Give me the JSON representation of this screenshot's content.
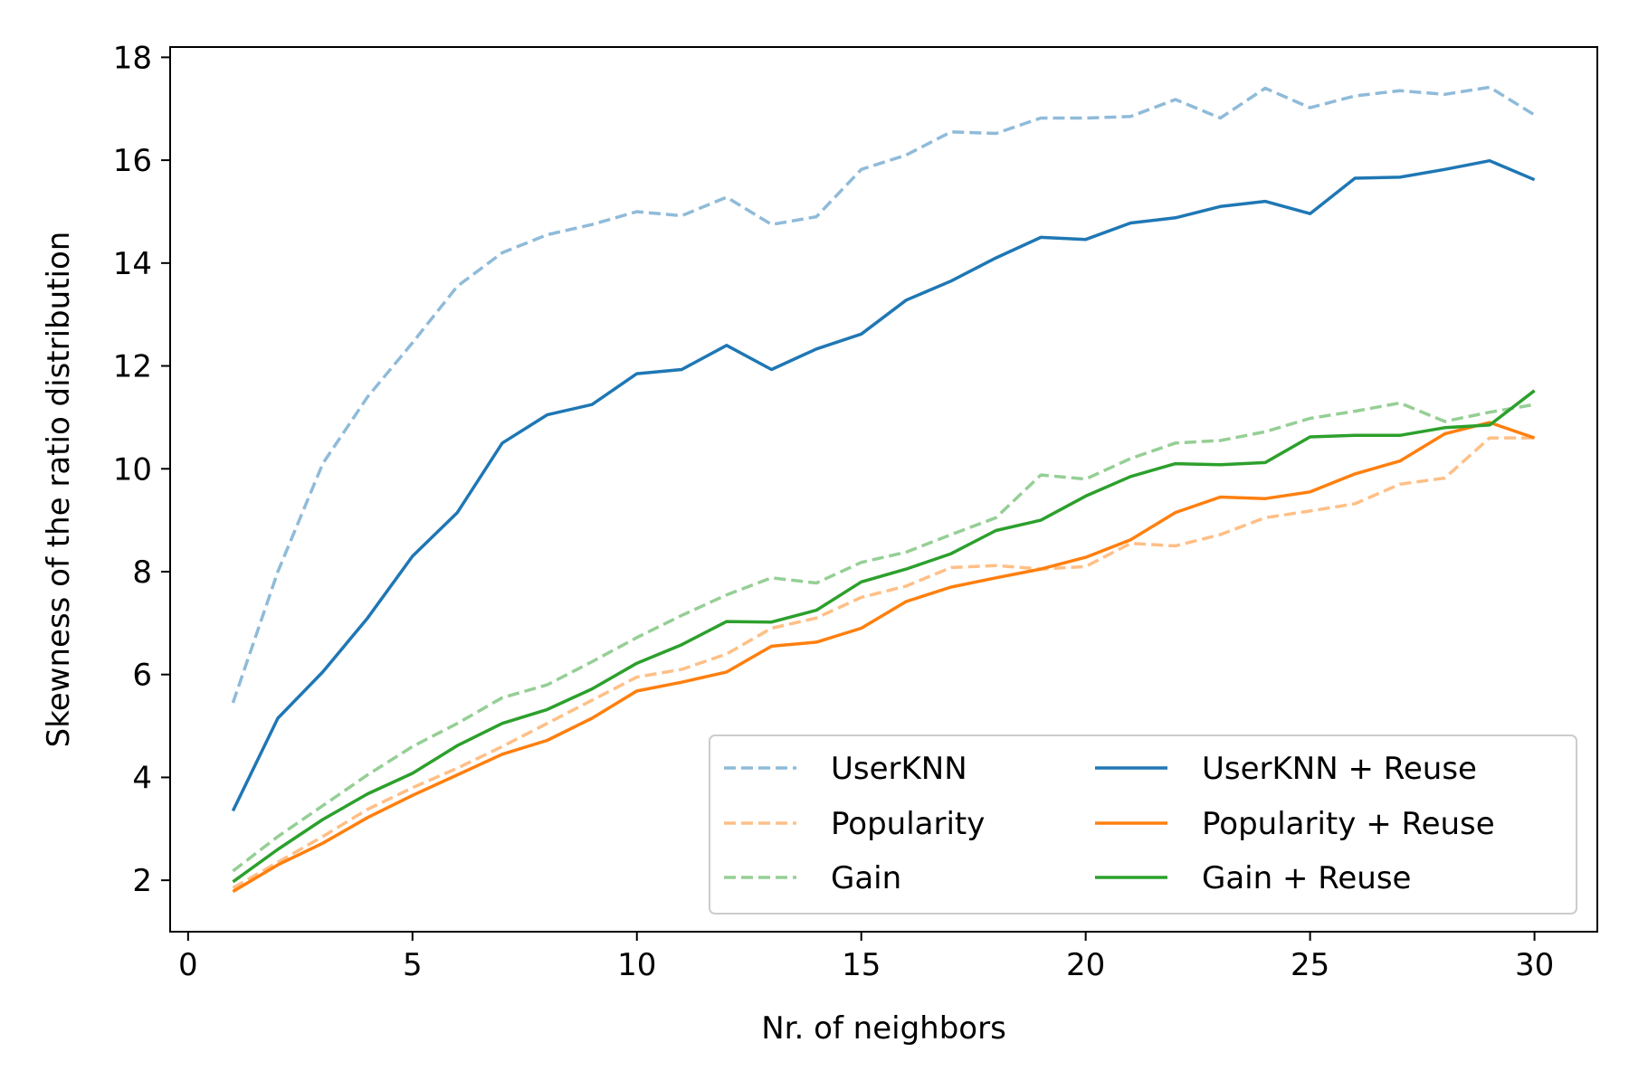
{
  "chart_data": {
    "type": "line",
    "xlabel": "Nr. of neighbors",
    "ylabel": "Skewness of the ratio distribution",
    "xlim": [
      -0.4,
      31.4
    ],
    "ylim": [
      1,
      18.2
    ],
    "xticks": [
      0,
      5,
      10,
      15,
      20,
      25,
      30
    ],
    "yticks": [
      2,
      4,
      6,
      8,
      10,
      12,
      14,
      16,
      18
    ],
    "grid": false,
    "legend_position": "lower-right",
    "legend_columns": 2,
    "x": [
      1,
      2,
      3,
      4,
      5,
      6,
      7,
      8,
      9,
      10,
      11,
      12,
      13,
      14,
      15,
      16,
      17,
      18,
      19,
      20,
      21,
      22,
      23,
      24,
      25,
      26,
      27,
      28,
      29,
      30
    ],
    "series": [
      {
        "name": "UserKNN",
        "color": "#1f77b4",
        "dashed": true,
        "faded": true,
        "values": [
          5.45,
          8.0,
          10.1,
          11.4,
          12.45,
          13.55,
          14.2,
          14.55,
          14.75,
          15.0,
          14.92,
          15.28,
          14.75,
          14.9,
          15.82,
          16.1,
          16.55,
          16.52,
          16.82,
          16.82,
          16.85,
          17.18,
          16.82,
          17.4,
          17.02,
          17.25,
          17.35,
          17.28,
          17.42,
          16.88
        ]
      },
      {
        "name": "Popularity",
        "color": "#ff7f0e",
        "dashed": true,
        "faded": true,
        "values": [
          1.85,
          2.35,
          2.85,
          3.38,
          3.8,
          4.18,
          4.6,
          5.05,
          5.5,
          5.95,
          6.1,
          6.4,
          6.9,
          7.1,
          7.5,
          7.72,
          8.08,
          8.12,
          8.05,
          8.1,
          8.55,
          8.5,
          8.72,
          9.05,
          9.18,
          9.32,
          9.7,
          9.82,
          10.6,
          10.6
        ]
      },
      {
        "name": "Gain",
        "color": "#2ca02c",
        "dashed": true,
        "faded": true,
        "values": [
          2.18,
          2.85,
          3.45,
          4.05,
          4.6,
          5.05,
          5.55,
          5.8,
          6.25,
          6.72,
          7.15,
          7.55,
          7.88,
          7.78,
          8.18,
          8.38,
          8.72,
          9.05,
          9.88,
          9.8,
          10.2,
          10.5,
          10.55,
          10.72,
          10.98,
          11.12,
          11.28,
          10.92,
          11.1,
          11.25
        ]
      },
      {
        "name": "UserKNN + Reuse",
        "color": "#1f77b4",
        "dashed": false,
        "faded": false,
        "values": [
          3.35,
          5.15,
          6.05,
          7.1,
          8.3,
          9.15,
          10.5,
          11.05,
          11.25,
          11.85,
          11.93,
          12.4,
          11.93,
          12.33,
          12.62,
          13.28,
          13.65,
          14.1,
          14.5,
          14.46,
          14.78,
          14.88,
          15.1,
          15.2,
          14.96,
          15.65,
          15.67,
          15.82,
          15.99,
          15.62
        ]
      },
      {
        "name": "Popularity + Reuse",
        "color": "#ff7f0e",
        "dashed": false,
        "faded": false,
        "values": [
          1.78,
          2.3,
          2.72,
          3.22,
          3.65,
          4.05,
          4.45,
          4.72,
          5.15,
          5.68,
          5.85,
          6.05,
          6.55,
          6.63,
          6.9,
          7.42,
          7.7,
          7.88,
          8.05,
          8.28,
          8.62,
          9.15,
          9.45,
          9.42,
          9.55,
          9.9,
          10.15,
          10.68,
          10.9,
          10.6
        ]
      },
      {
        "name": "Gain + Reuse",
        "color": "#2ca02c",
        "dashed": false,
        "faded": false,
        "values": [
          1.97,
          2.6,
          3.18,
          3.68,
          4.08,
          4.62,
          5.05,
          5.32,
          5.72,
          6.22,
          6.58,
          7.03,
          7.02,
          7.25,
          7.8,
          8.05,
          8.35,
          8.8,
          9.0,
          9.47,
          9.85,
          10.1,
          10.08,
          10.12,
          10.62,
          10.65,
          10.65,
          10.8,
          10.85,
          11.52
        ]
      }
    ]
  }
}
